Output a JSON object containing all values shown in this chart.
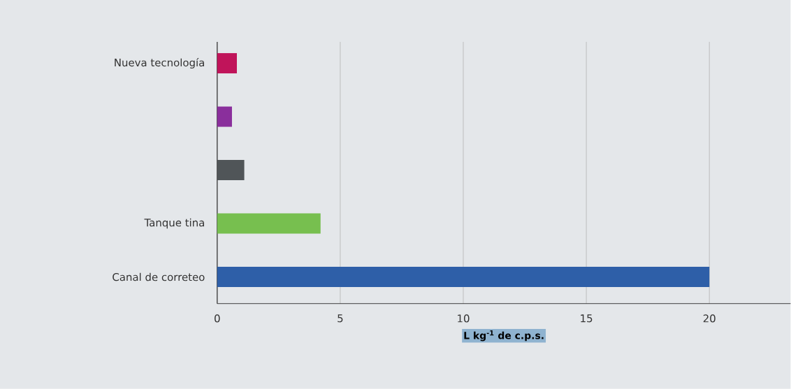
{
  "chart_data": {
    "type": "bar",
    "orientation": "horizontal",
    "xlabel": "L kg$^{-1}$ de c.p.s.",
    "categories": [
      "Nueva tecnología",
      null,
      null,
      "Tanque tina",
      "Canal de correteo"
    ],
    "values": [
      0.8,
      0.6,
      1.1,
      4.2,
      20
    ],
    "colors": [
      "#c0145a",
      "#8a2f9c",
      "#505558",
      "#77bf4f",
      "#2e5fa8"
    ],
    "xlim": [
      0,
      23.3
    ],
    "xticks": [
      0,
      5,
      10,
      15,
      20
    ],
    "grid": "x"
  }
}
